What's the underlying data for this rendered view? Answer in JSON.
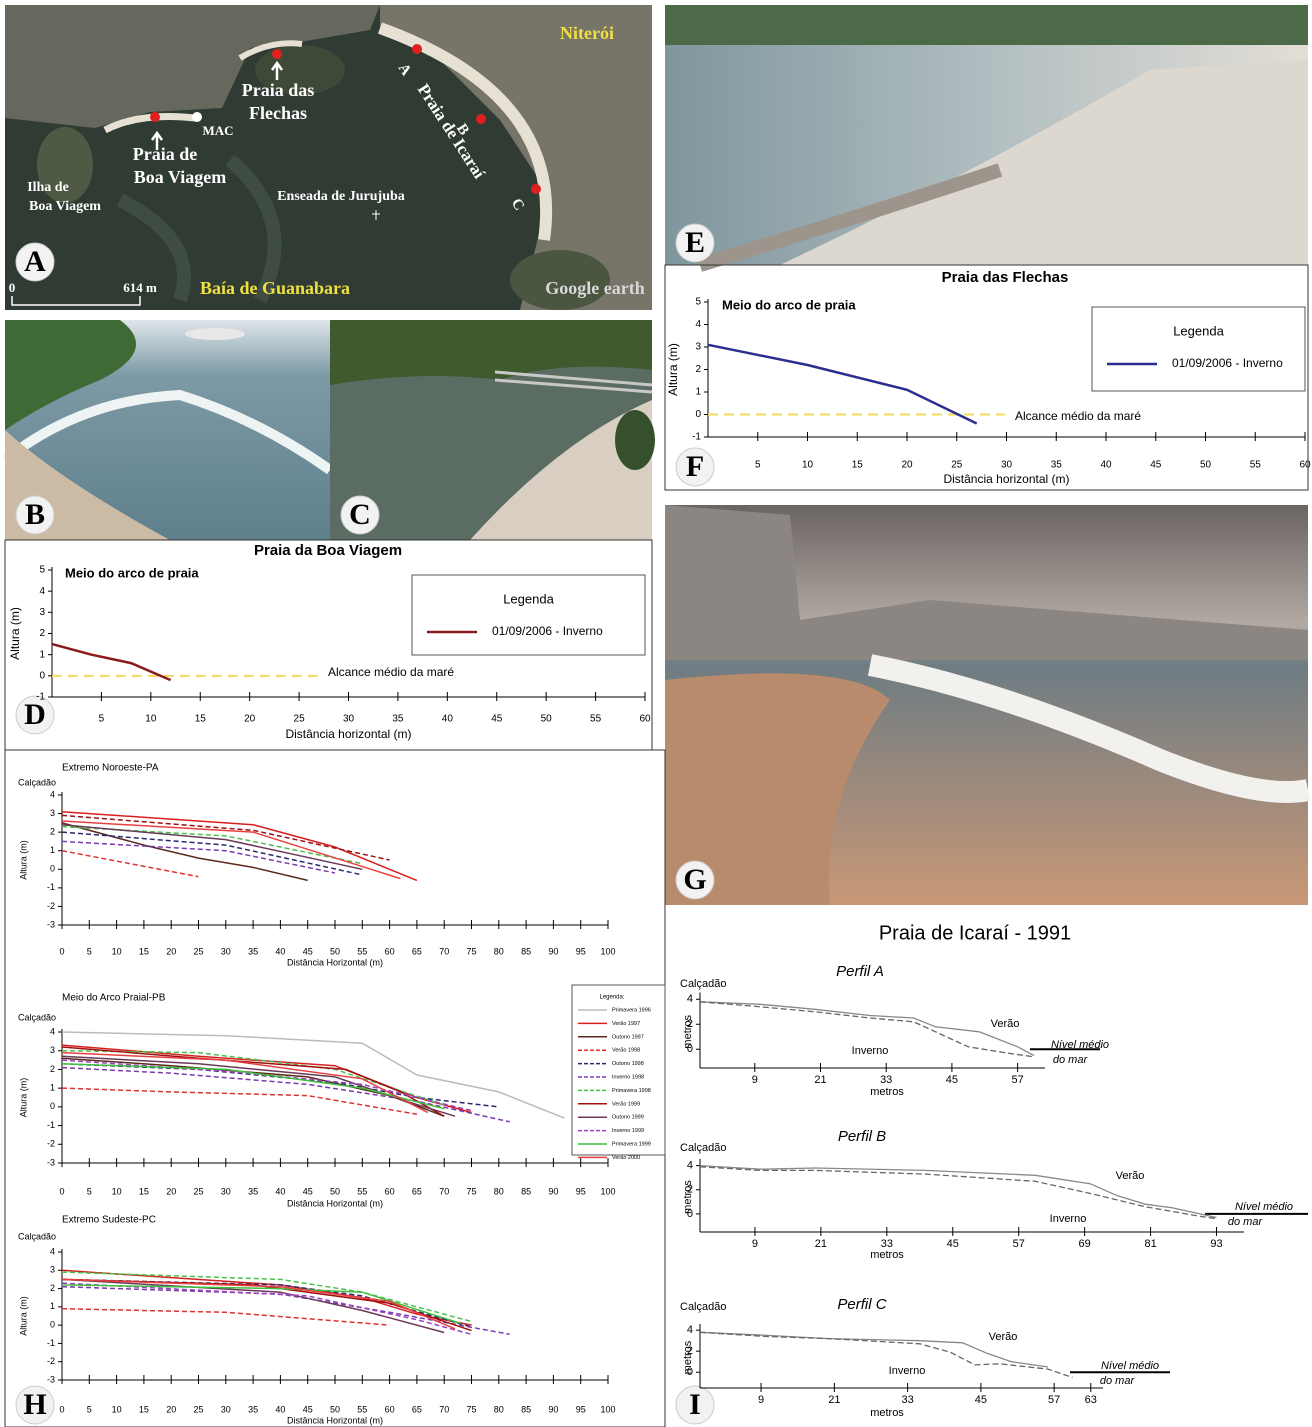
{
  "map": {
    "city": "Niterói",
    "flechas": [
      "Praia das",
      "Flechas"
    ],
    "mac": "MAC",
    "boa_viagem": [
      "Praia de",
      "Boa Viagem"
    ],
    "ilha": [
      "Ilha de",
      "Boa Viagem"
    ],
    "enseada": "Enseada de Jurujuba",
    "icarai": "Praia de Icaraí",
    "points": [
      "A",
      "B",
      "C"
    ],
    "bay": "Baía de Guanabara",
    "scale": [
      "0",
      "614 m"
    ],
    "watermark": "Google earth"
  },
  "panel_labels": [
    "A",
    "B",
    "C",
    "D",
    "E",
    "F",
    "G",
    "H",
    "I"
  ],
  "icarai_title": "Praia de Icaraí - 1991",
  "chart_data": [
    {
      "type": "line",
      "title": "Praia da Boa Viagem",
      "subtitle": "Meio do arco de praia",
      "xlabel": "Distância horizontal (m)",
      "ylabel": "Altura (m)",
      "xlim": [
        0,
        60
      ],
      "ylim": [
        -1,
        5
      ],
      "xticks": [
        5,
        10,
        15,
        20,
        25,
        30,
        35,
        40,
        45,
        50,
        55,
        60
      ],
      "yticks": [
        -1,
        0,
        1,
        2,
        3,
        4,
        5
      ],
      "grid": false,
      "legend": {
        "title": "Legenda",
        "position": "upper-right"
      },
      "reference": {
        "value": 0,
        "label": "Alcance médio da maré",
        "color": "#f2dc5a",
        "style": "dashed"
      },
      "series": [
        {
          "name": "01/09/2006 - Inverno",
          "color": "#8b1a1a",
          "style": "solid",
          "x": [
            0,
            4,
            8,
            12
          ],
          "values": [
            1.5,
            1.0,
            0.6,
            -0.2
          ]
        }
      ]
    },
    {
      "type": "line",
      "title": "Praia das Flechas",
      "subtitle": "Meio do arco de praia",
      "xlabel": "Distância horizontal (m)",
      "ylabel": "Altura (m)",
      "xlim": [
        0,
        60
      ],
      "ylim": [
        -1,
        5
      ],
      "xticks": [
        5,
        10,
        15,
        20,
        25,
        30,
        35,
        40,
        45,
        50,
        55,
        60
      ],
      "yticks": [
        -1,
        0,
        1,
        2,
        3,
        4,
        5
      ],
      "grid": false,
      "legend": {
        "title": "Legenda",
        "position": "upper-right"
      },
      "reference": {
        "value": 0,
        "label": "Alcance médio da maré",
        "color": "#f2dc5a",
        "style": "dashed"
      },
      "series": [
        {
          "name": "01/09/2006 - Inverno",
          "color": "#2a2f8f",
          "style": "solid",
          "x": [
            0,
            10,
            20,
            27
          ],
          "values": [
            3.1,
            2.2,
            1.1,
            -0.4
          ]
        }
      ]
    },
    {
      "type": "line",
      "title": "Extremo Noroeste-PA",
      "top_label": "Calçadão",
      "xlabel": "Distância Horizontal (m)",
      "ylabel": "Altura (m)",
      "xlim": [
        0,
        100
      ],
      "ylim": [
        -3,
        4
      ],
      "xticks": [
        0,
        5,
        10,
        15,
        20,
        25,
        30,
        35,
        40,
        45,
        50,
        55,
        60,
        65,
        70,
        75,
        80,
        85,
        90,
        95,
        100
      ],
      "yticks": [
        -3,
        -2,
        -1,
        0,
        1,
        2,
        3,
        4
      ],
      "grid": false,
      "series": [
        {
          "color": "#d62020",
          "style": "solid",
          "x": [
            0,
            35,
            50,
            65
          ],
          "values": [
            3.1,
            2.4,
            1.2,
            -0.6
          ]
        },
        {
          "color": "#5a2a1a",
          "style": "solid",
          "x": [
            0,
            15,
            25,
            35,
            45
          ],
          "values": [
            2.5,
            1.3,
            0.6,
            0.1,
            -0.6
          ]
        },
        {
          "color": "#e03030",
          "style": "dashed",
          "x": [
            0,
            25
          ],
          "values": [
            1,
            -0.4
          ]
        },
        {
          "color": "#2a2a6a",
          "style": "dashed",
          "x": [
            0,
            30,
            55
          ],
          "values": [
            2.0,
            1.3,
            -0.3
          ]
        },
        {
          "color": "#7a3ab0",
          "style": "dashed",
          "x": [
            0,
            30,
            50
          ],
          "values": [
            1.5,
            1.0,
            -0.2
          ]
        },
        {
          "color": "#4cbf4c",
          "style": "dashed",
          "x": [
            0,
            30,
            55
          ],
          "values": [
            2.3,
            1.8,
            0.3
          ]
        },
        {
          "color": "#a01010",
          "style": "dashed",
          "x": [
            0,
            35,
            60
          ],
          "values": [
            2.9,
            2.1,
            0.5
          ]
        },
        {
          "color": "#6a3a5a",
          "style": "solid",
          "x": [
            0,
            30,
            55
          ],
          "values": [
            2.4,
            1.6,
            0
          ]
        },
        {
          "color": "#e84040",
          "style": "solid",
          "x": [
            0,
            35,
            62
          ],
          "values": [
            2.6,
            2.0,
            -0.5
          ]
        }
      ]
    },
    {
      "type": "line",
      "title": "Meio do Arco Praial-PB",
      "top_label": "Calçadão",
      "xlabel": "Distância Horizontal (m)",
      "ylabel": "Altura (m)",
      "xlim": [
        0,
        100
      ],
      "ylim": [
        -3,
        4
      ],
      "xticks": [
        0,
        5,
        10,
        15,
        20,
        25,
        30,
        35,
        40,
        45,
        50,
        55,
        60,
        65,
        70,
        75,
        80,
        85,
        90,
        95,
        100
      ],
      "yticks": [
        -3,
        -2,
        -1,
        0,
        1,
        2,
        3,
        4
      ],
      "grid": false,
      "legend": {
        "title": "Legenda:",
        "position": "outside-right"
      },
      "series": [
        {
          "name": "Primavera 1996",
          "color": "#bbbbbb",
          "style": "solid",
          "x": [
            0,
            30,
            55,
            65,
            80,
            92
          ],
          "values": [
            4,
            3.8,
            3.4,
            1.7,
            0.8,
            -0.6
          ]
        },
        {
          "name": "Verão 1997",
          "color": "#d62020",
          "style": "solid",
          "x": [
            0,
            25,
            50,
            65,
            75
          ],
          "values": [
            3.3,
            2.7,
            2.2,
            0.5,
            -0.3
          ]
        },
        {
          "name": "Outono 1997",
          "color": "#5a2a1a",
          "style": "solid",
          "x": [
            0,
            20,
            45,
            60,
            70
          ],
          "values": [
            2.6,
            2.2,
            1.6,
            0.6,
            -0.5
          ]
        },
        {
          "name": "Verão 1998",
          "color": "#e03030",
          "style": "dashed",
          "x": [
            0,
            20,
            45,
            65
          ],
          "values": [
            1,
            0.8,
            0.6,
            -0.4
          ]
        },
        {
          "name": "Outono 1998",
          "color": "#2a2a6a",
          "style": "dashed",
          "x": [
            0,
            25,
            50,
            65,
            80
          ],
          "values": [
            2.3,
            2.0,
            1.3,
            0.5,
            0
          ]
        },
        {
          "name": "Inverno 1998",
          "color": "#7a3ab0",
          "style": "dashed",
          "x": [
            0,
            20,
            45,
            65,
            82
          ],
          "values": [
            2.1,
            1.8,
            1.2,
            0.3,
            -0.8
          ]
        },
        {
          "name": "Primavera 1998",
          "color": "#4cbf4c",
          "style": "dashed",
          "x": [
            0,
            25,
            50,
            70
          ],
          "values": [
            3.0,
            2.9,
            2.0,
            0.1
          ]
        },
        {
          "name": "Verão 1999",
          "color": "#a01010",
          "style": "solid",
          "x": [
            0,
            25,
            52,
            62,
            70
          ],
          "values": [
            3.2,
            2.6,
            2.0,
            0.8,
            -0.5
          ]
        },
        {
          "name": "Outono 1999",
          "color": "#6a3a5a",
          "style": "solid",
          "x": [
            0,
            25,
            50,
            63,
            72
          ],
          "values": [
            2.7,
            2.3,
            1.6,
            0.3,
            -0.5
          ]
        },
        {
          "name": "Inverno 1999",
          "color": "#9a40c0",
          "style": "dashed",
          "x": [
            0,
            30,
            55,
            75
          ],
          "values": [
            2.5,
            1.9,
            1.2,
            -0.2
          ]
        },
        {
          "name": "Primavera 1999",
          "color": "#40c040",
          "style": "solid",
          "x": [
            0,
            30,
            55,
            70
          ],
          "values": [
            2.3,
            2.0,
            1.0,
            -0.1
          ]
        },
        {
          "name": "Verão 2000",
          "color": "#e84040",
          "style": "solid",
          "x": [
            0,
            30,
            55,
            67
          ],
          "values": [
            2.9,
            2.5,
            1.5,
            -0.3
          ]
        }
      ]
    },
    {
      "type": "line",
      "title": "Extremo Sudeste-PC",
      "top_label": "Calçadão",
      "xlabel": "Distância Horizontal (m)",
      "ylabel": "Altura (m)",
      "xlim": [
        0,
        100
      ],
      "ylim": [
        -3,
        4
      ],
      "xticks": [
        0,
        5,
        10,
        15,
        20,
        25,
        30,
        35,
        40,
        45,
        50,
        55,
        60,
        65,
        70,
        75,
        80,
        85,
        90,
        95,
        100
      ],
      "yticks": [
        -3,
        -2,
        -1,
        0,
        1,
        2,
        3,
        4
      ],
      "grid": false,
      "series": [
        {
          "color": "#d62020",
          "style": "solid",
          "x": [
            0,
            40,
            55,
            65,
            75
          ],
          "values": [
            3.0,
            2.2,
            1.5,
            0.6,
            0
          ]
        },
        {
          "color": "#e03030",
          "style": "dashed",
          "x": [
            0,
            30,
            60
          ],
          "values": [
            0.9,
            0.7,
            0
          ]
        },
        {
          "color": "#2a2a6a",
          "style": "dashed",
          "x": [
            0,
            40,
            55,
            75
          ],
          "values": [
            2.5,
            2.2,
            1.6,
            -0.1
          ]
        },
        {
          "color": "#7a3ab0",
          "style": "dashed",
          "x": [
            0,
            40,
            60,
            82
          ],
          "values": [
            2.1,
            1.7,
            0.7,
            -0.5
          ]
        },
        {
          "color": "#4cbf4c",
          "style": "dashed",
          "x": [
            0,
            40,
            55,
            75
          ],
          "values": [
            2.9,
            2.5,
            1.8,
            0.2
          ]
        },
        {
          "color": "#a01010",
          "style": "solid",
          "x": [
            0,
            35,
            60,
            75
          ],
          "values": [
            2.5,
            2.2,
            1.2,
            -0.3
          ]
        },
        {
          "color": "#6a3a5a",
          "style": "solid",
          "x": [
            0,
            40,
            55,
            70
          ],
          "values": [
            2.5,
            1.8,
            0.8,
            -0.4
          ]
        },
        {
          "color": "#9a40c0",
          "style": "dashed",
          "x": [
            0,
            45,
            65,
            75
          ],
          "values": [
            2.3,
            1.6,
            0.3,
            -0.5
          ]
        },
        {
          "color": "#40c040",
          "style": "solid",
          "x": [
            0,
            40,
            55,
            73
          ],
          "values": [
            2.2,
            2.0,
            1.8,
            0.1
          ]
        },
        {
          "color": "#e84040",
          "style": "solid",
          "x": [
            0,
            40,
            60,
            72
          ],
          "values": [
            2.5,
            2.1,
            1.3,
            -0.2
          ]
        }
      ]
    },
    {
      "type": "line",
      "title": "Perfil A",
      "top_label": "Calçadão",
      "xlabel": "metros",
      "ylabel": "metros",
      "xlim": [
        -1,
        62
      ],
      "ylim": [
        -1.5,
        4.3
      ],
      "xticks": [
        9,
        21,
        33,
        45,
        57
      ],
      "yticks": [
        0,
        2,
        4
      ],
      "grid": false,
      "reference": {
        "value": 0,
        "label": [
          "Nível médio",
          "do mar"
        ],
        "color": "#000000",
        "style": "solid"
      },
      "series": [
        {
          "name": "Verão",
          "color": "#888888",
          "style": "solid",
          "x": [
            -1,
            10,
            20,
            30,
            38,
            42,
            50,
            57,
            60
          ],
          "values": [
            3.8,
            3.6,
            3.2,
            2.7,
            2.5,
            1.8,
            1.4,
            0.2,
            -0.5
          ]
        },
        {
          "name": "Inverno",
          "color": "#666666",
          "style": "dashed",
          "x": [
            -1,
            10,
            20,
            30,
            38,
            42,
            48,
            55,
            60
          ],
          "values": [
            3.8,
            3.4,
            3.0,
            2.5,
            2.2,
            1.4,
            0.2,
            -0.3,
            -0.6
          ]
        }
      ]
    },
    {
      "type": "line",
      "title": "Perfil B",
      "top_label": "Calçadão",
      "xlabel": "metros",
      "ylabel": "metros",
      "xlim": [
        -1,
        98
      ],
      "ylim": [
        -1.5,
        4.3
      ],
      "xticks": [
        9,
        21,
        33,
        45,
        57,
        69,
        81,
        93
      ],
      "yticks": [
        0,
        2,
        4
      ],
      "grid": false,
      "reference": {
        "value": 0,
        "label": [
          "Nível médio",
          "do mar"
        ],
        "color": "#000000",
        "style": "solid"
      },
      "series": [
        {
          "name": "Verão",
          "color": "#888888",
          "style": "solid",
          "x": [
            -1,
            10,
            20,
            40,
            60,
            70,
            75,
            80,
            85,
            93
          ],
          "values": [
            4,
            3.7,
            3.8,
            3.6,
            3.2,
            2.5,
            1.5,
            0.8,
            0.5,
            -0.3
          ]
        },
        {
          "name": "Inverno",
          "color": "#666666",
          "style": "dashed",
          "x": [
            -1,
            10,
            20,
            40,
            60,
            70,
            80,
            90,
            93
          ],
          "values": [
            3.9,
            3.6,
            3.6,
            3.3,
            2.7,
            1.7,
            0.6,
            -0.2,
            -0.4
          ]
        }
      ]
    },
    {
      "type": "line",
      "title": "Perfil C",
      "top_label": "Calçadão",
      "xlabel": "metros",
      "ylabel": "metros",
      "xlim": [
        -1,
        65
      ],
      "ylim": [
        -1.5,
        4.3
      ],
      "xticks": [
        9,
        21,
        33,
        45,
        57,
        63
      ],
      "yticks": [
        0,
        2,
        4
      ],
      "grid": false,
      "reference": {
        "value": 0,
        "label": [
          "Nível médio",
          "do mar"
        ],
        "color": "#000000",
        "style": "solid"
      },
      "series": [
        {
          "name": "Verão",
          "color": "#888888",
          "style": "solid",
          "x": [
            -1,
            10,
            20,
            35,
            42,
            46,
            50,
            56
          ],
          "values": [
            3.8,
            3.5,
            3.2,
            3.0,
            2.8,
            1.8,
            1.0,
            0.5
          ]
        },
        {
          "name": "Inverno",
          "color": "#666666",
          "style": "dashed",
          "x": [
            -1,
            10,
            20,
            35,
            40,
            44,
            48,
            56,
            60
          ],
          "values": [
            3.8,
            3.4,
            3.2,
            2.7,
            1.9,
            0.7,
            0.8,
            0.3,
            -0.5
          ]
        }
      ]
    }
  ]
}
